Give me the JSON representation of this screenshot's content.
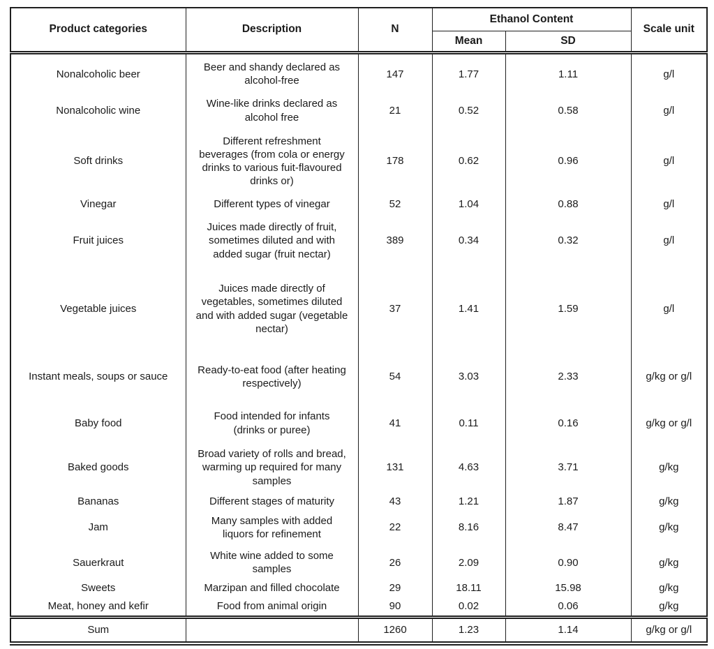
{
  "table": {
    "header": {
      "product_categories": "Product categories",
      "description": "Description",
      "n": "N",
      "ethanol_content": "Ethanol Content",
      "mean": "Mean",
      "sd": "SD",
      "scale_unit": "Scale unit"
    },
    "rows": [
      {
        "category": "Nonalcoholic beer",
        "description": "Beer and shandy declared as\nalcohol-free",
        "n": "147",
        "mean": "1.77",
        "sd": "1.11",
        "scale_unit": "g/l"
      },
      {
        "category": "Nonalcoholic wine",
        "description": "Wine-like drinks declared as\nalcohol free",
        "n": "21",
        "mean": "0.52",
        "sd": "0.58",
        "scale_unit": "g/l"
      },
      {
        "category": "Soft drinks",
        "description": "Different refreshment\nbeverages (from cola or energy\ndrinks to various fuit-flavoured\ndrinks or)",
        "n": "178",
        "mean": "0.62",
        "sd": "0.96",
        "scale_unit": "g/l"
      },
      {
        "category": "Vinegar",
        "description": "Different types of vinegar",
        "n": "52",
        "mean": "1.04",
        "sd": "0.88",
        "scale_unit": "g/l"
      },
      {
        "category": "Fruit juices",
        "description": "Juices made directly of fruit,\nsometimes diluted and with\nadded sugar (fruit nectar)",
        "n": "389",
        "mean": "0.34",
        "sd": "0.32",
        "scale_unit": "g/l"
      },
      {
        "category": "Vegetable juices",
        "description": "Juices made directly of\nvegetables, sometimes diluted\nand with added sugar (vegetable\nnectar)",
        "n": "37",
        "mean": "1.41",
        "sd": "1.59",
        "scale_unit": "g/l"
      },
      {
        "category": "Instant meals, soups or sauce",
        "description": "Ready-to-eat food (after heating\nrespectively)",
        "n": "54",
        "mean": "3.03",
        "sd": "2.33",
        "scale_unit": "g/kg or g/l"
      },
      {
        "category": "Baby food",
        "description": "Food intended for infants\n(drinks or puree)",
        "n": "41",
        "mean": "0.11",
        "sd": "0.16",
        "scale_unit": "g/kg or g/l"
      },
      {
        "category": "Baked goods",
        "description": "Broad variety of rolls and bread,\nwarming up required for many\nsamples",
        "n": "131",
        "mean": "4.63",
        "sd": "3.71",
        "scale_unit": "g/kg"
      },
      {
        "category": "Bananas",
        "description": "Different stages of maturity",
        "n": "43",
        "mean": "1.21",
        "sd": "1.87",
        "scale_unit": "g/kg"
      },
      {
        "category": "Jam",
        "description": "Many samples with added\nliquors for refinement",
        "n": "22",
        "mean": "8.16",
        "sd": "8.47",
        "scale_unit": "g/kg"
      },
      {
        "category": "Sauerkraut",
        "description": "White wine added to some\nsamples",
        "n": "26",
        "mean": "2.09",
        "sd": "0.90",
        "scale_unit": "g/kg"
      },
      {
        "category": "Sweets",
        "description": "Marzipan and filled chocolate",
        "n": "29",
        "mean": "18.11",
        "sd": "15.98",
        "scale_unit": "g/kg"
      },
      {
        "category": "Meat, honey and kefir",
        "description": "Food from animal origin",
        "n": "90",
        "mean": "0.02",
        "sd": "0.06",
        "scale_unit": "g/kg"
      }
    ],
    "sum_row": {
      "category": "Sum",
      "description": "",
      "n": "1260",
      "mean": "1.23",
      "sd": "1.14",
      "scale_unit": "g/kg or g/l"
    }
  }
}
